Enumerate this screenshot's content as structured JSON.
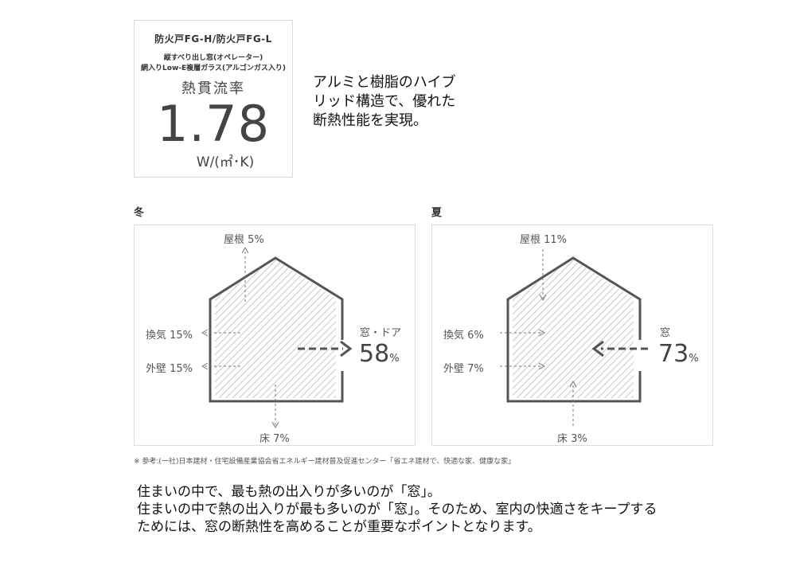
{
  "card": {
    "product": "防火戸FG-H/防火戸FG-L",
    "line1": "縦すべり出し窓(オペレーター)",
    "line2": "網入りLow-E複層ガラス(アルゴンガス入り)",
    "metric": "熱貫流率",
    "value": "1.78",
    "unit": "W/(㎡･K)"
  },
  "intro": [
    "アルミと樹脂のハイブ",
    "リッド構造で、優れた",
    "断熱性能を実現。"
  ],
  "winter": {
    "title": "冬",
    "roof": "屋根 5%",
    "ventilation": "換気 15%",
    "wall": "外壁 15%",
    "floor": "床 7%",
    "window_label": "窓・ドア",
    "window_value": "58",
    "pct": "%"
  },
  "summer": {
    "title": "夏",
    "roof": "屋根 11%",
    "ventilation": "換気 6%",
    "wall": "外壁 7%",
    "floor": "床 3%",
    "window_label": "窓",
    "window_value": "73",
    "pct": "%"
  },
  "reference": "※ 参考:(一社)日本建材・住宅設備産業協会省エネルギー建材普及促進センター「省エネ建材で、快適な家、健康な家」",
  "bottom": [
    "住まいの中で、最も熱の出入りが多いのが「窓」。",
    "住まいの中で熱の出入りが最も多いのが「窓」。そのため、室内の快適さをキープする",
    "ためには、窓の断熱性を高めることが重要なポイントとなります。"
  ],
  "colors": {
    "line": "#555555",
    "hatch": "#c8c8c8",
    "border": "#dcdcdc"
  }
}
